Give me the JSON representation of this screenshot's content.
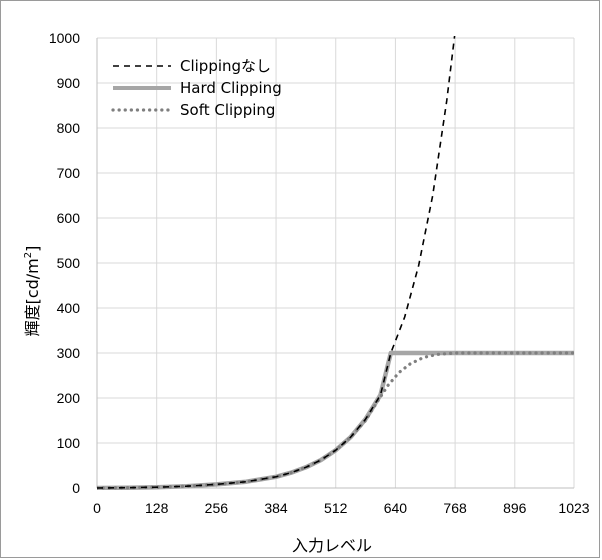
{
  "chart_data": {
    "type": "line",
    "xlabel": "入力レベル",
    "ylabel": "輝度[cd/m",
    "ylabel_sup": "2",
    "ylabel_close": "]",
    "xlim": [
      0,
      1023
    ],
    "ylim": [
      0,
      1000
    ],
    "grid": true,
    "legend_position": "top-left",
    "x_ticks": [
      "0",
      "128",
      "256",
      "384",
      "512",
      "640",
      "768",
      "896",
      "1023"
    ],
    "x_tick_values": [
      0,
      128,
      256,
      384,
      512,
      640,
      768,
      896,
      1023
    ],
    "y_ticks": [
      "0",
      "100",
      "200",
      "300",
      "400",
      "500",
      "600",
      "700",
      "800",
      "900",
      "1000"
    ],
    "y_tick_values": [
      0,
      100,
      200,
      300,
      400,
      500,
      600,
      700,
      800,
      900,
      1000
    ],
    "series": [
      {
        "name": "Clippingなし",
        "style": "dashed",
        "color": "#000000",
        "x": [
          0,
          64,
          128,
          192,
          256,
          320,
          384,
          416,
          448,
          480,
          512,
          544,
          576,
          608,
          630,
          660,
          690,
          720,
          750,
          770
        ],
        "y": [
          0,
          0.6,
          1.8,
          4,
          8,
          14,
          25,
          34,
          46,
          62,
          84,
          113,
          153,
          207,
          300,
          380,
          495,
          650,
          860,
          1030
        ]
      },
      {
        "name": "Hard Clipping",
        "style": "solid-thick",
        "color": "#a6a6a6",
        "x": [
          0,
          64,
          128,
          192,
          256,
          320,
          384,
          416,
          448,
          480,
          512,
          544,
          576,
          608,
          630,
          680,
          768,
          896,
          1023
        ],
        "y": [
          0,
          0.6,
          1.8,
          4,
          8,
          14,
          25,
          34,
          46,
          62,
          84,
          113,
          153,
          207,
          300,
          300,
          300,
          300,
          300
        ]
      },
      {
        "name": "Soft Clipping",
        "style": "dotted",
        "color": "#7f7f7f",
        "x": [
          0,
          64,
          128,
          192,
          256,
          320,
          384,
          416,
          448,
          480,
          512,
          544,
          576,
          600,
          624,
          648,
          672,
          700,
          730,
          768,
          896,
          1023
        ],
        "y": [
          0,
          0.6,
          1.8,
          4,
          8,
          14,
          25,
          34,
          46,
          62,
          84,
          113,
          150,
          190,
          228,
          257,
          276,
          290,
          297,
          300,
          300,
          300
        ]
      }
    ]
  }
}
